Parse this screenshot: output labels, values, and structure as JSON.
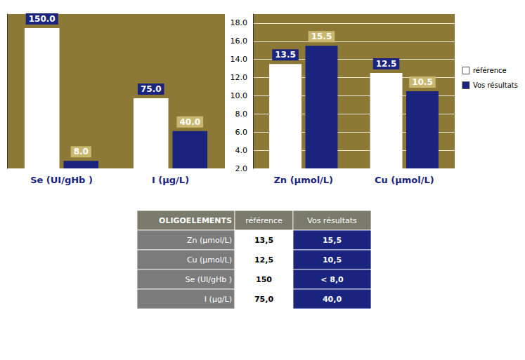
{
  "chart_data": [
    {
      "type": "bar",
      "categories": [
        "Se (UI/gHb )",
        "I (μg/L)"
      ],
      "series": [
        {
          "name": "référence",
          "color": "white",
          "values": [
            150.0,
            75.0
          ],
          "value_labels": [
            "150.0",
            "75.0"
          ]
        },
        {
          "name": "Vos résultats",
          "color": "#1a237e",
          "values": [
            8.0,
            40.0
          ],
          "value_labels": [
            "8.0",
            "40.0"
          ]
        }
      ],
      "ylim": [
        0,
        165
      ],
      "yticks": [],
      "grid": false,
      "data_labels": true,
      "tick_labels": "x"
    },
    {
      "type": "bar",
      "categories": [
        "Zn (μmol/L)",
        "Cu (μmol/L)"
      ],
      "series": [
        {
          "name": "référence",
          "color": "white",
          "values": [
            13.5,
            12.5
          ]
        },
        {
          "name": "Vos résultats",
          "color": "#1a237e",
          "values": [
            15.5,
            10.5
          ]
        }
      ],
      "ylim": [
        2.0,
        19.0
      ],
      "yticks": [
        {
          "value": 2,
          "label": "2.0"
        },
        {
          "value": 4,
          "label": "4.0"
        },
        {
          "value": 6,
          "label": "6.0"
        },
        {
          "value": 8,
          "label": "8.0"
        },
        {
          "value": 10,
          "label": "10.0"
        },
        {
          "value": 12,
          "label": "12.0"
        },
        {
          "value": 14,
          "label": "14.0"
        },
        {
          "value": 16,
          "label": "16.0"
        },
        {
          "value": 18,
          "label": "18.0"
        }
      ],
      "grid": true,
      "data_labels": true,
      "legend": "right"
    },
    {
      "type": "table",
      "header": [
        "OLIGOELEMENTS",
        "référence",
        "Vos résultats"
      ],
      "rows": [
        [
          "Zn (μmol/L)",
          "13,5",
          "15,5"
        ],
        [
          "Cu (μmol/L)",
          "12,5",
          "10,5"
        ],
        [
          "Se (UI/gHb )",
          "150",
          "< 8,0"
        ],
        [
          "I (μg/L)",
          "75,0",
          "40,0"
        ]
      ]
    }
  ]
}
